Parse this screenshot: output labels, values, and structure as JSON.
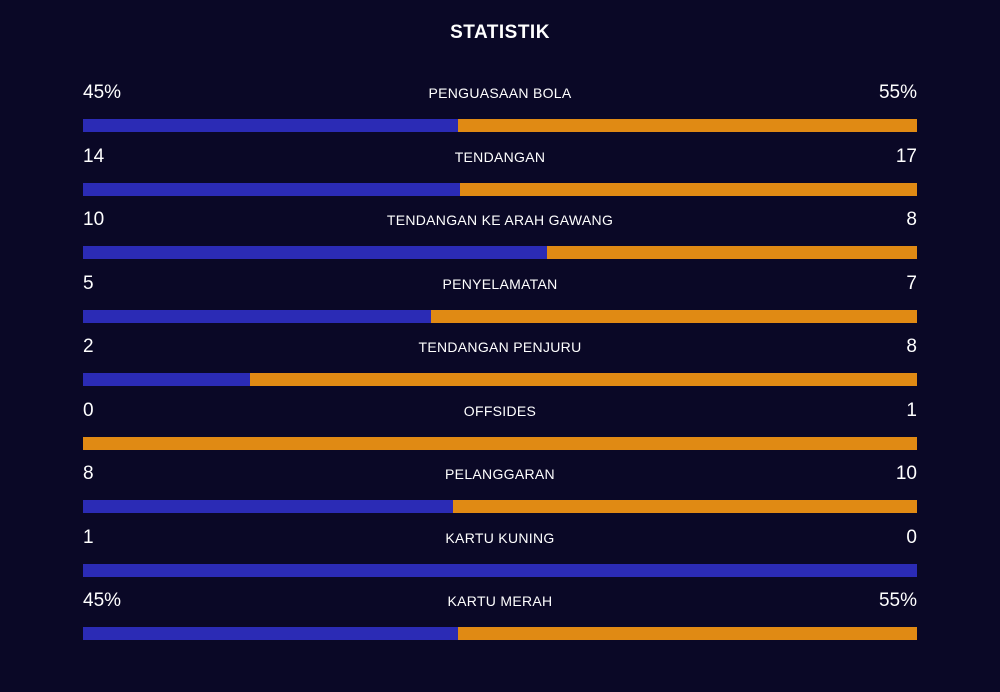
{
  "title": "STATISTIK",
  "colors": {
    "background": "#0a0826",
    "home": "#2b2bb5",
    "away": "#e08a14"
  },
  "stats": [
    {
      "label": "PENGUASAAN BOLA",
      "home": "45%",
      "away": "55%",
      "home_share": 0.45
    },
    {
      "label": "TENDANGAN",
      "home": "14",
      "away": "17",
      "home_share": 0.452
    },
    {
      "label": "TENDANGAN KE ARAH GAWANG",
      "home": "10",
      "away": "8",
      "home_share": 0.556
    },
    {
      "label": "PENYELAMATAN",
      "home": "5",
      "away": "7",
      "home_share": 0.417
    },
    {
      "label": "TENDANGAN PENJURU",
      "home": "2",
      "away": "8",
      "home_share": 0.2
    },
    {
      "label": "OFFSIDES",
      "home": "0",
      "away": "1",
      "home_share": 0.0
    },
    {
      "label": "PELANGGARAN",
      "home": "8",
      "away": "10",
      "home_share": 0.444
    },
    {
      "label": "KARTU KUNING",
      "home": "1",
      "away": "0",
      "home_share": 1.0
    },
    {
      "label": "KARTU MERAH",
      "home": "45%",
      "away": "55%",
      "home_share": 0.45
    }
  ]
}
